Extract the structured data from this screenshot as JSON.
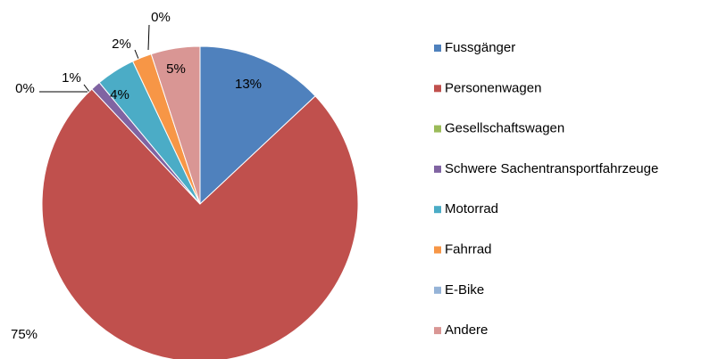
{
  "chart_data": {
    "type": "pie",
    "categories": [
      "Fussgänger",
      "Personenwagen",
      "Gesellschaftswagen",
      "Schwere Sachentransportfahrzeuge",
      "Motorrad",
      "Fahrrad",
      "E-Bike",
      "Andere"
    ],
    "values": [
      13,
      75,
      0,
      1,
      4,
      2,
      0,
      5
    ],
    "value_labels": [
      "13%",
      "75%",
      "0%",
      "1%",
      "4%",
      "2%",
      "0%",
      "5%"
    ],
    "colors": [
      "#4f81bd",
      "#c0504d",
      "#9bbb59",
      "#8064a2",
      "#4bacc6",
      "#f79646",
      "#95b3d7",
      "#d99694"
    ],
    "legend": "right"
  }
}
